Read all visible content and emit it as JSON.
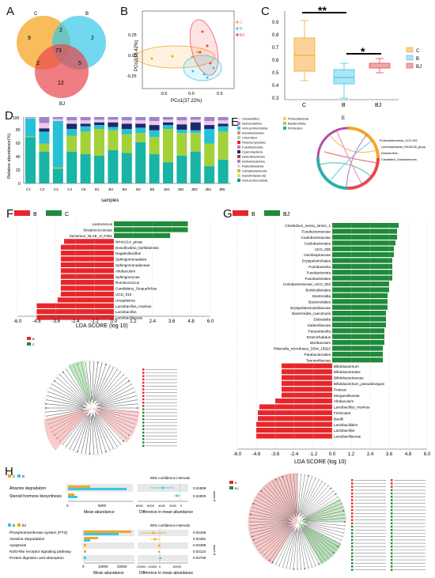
{
  "panels": {
    "a": "A",
    "b": "B",
    "c": "C",
    "d": "D",
    "e": "E",
    "f": "F",
    "g": "G",
    "h": "H"
  },
  "venn": {
    "sets": [
      {
        "label": "C",
        "color": "#f5a623"
      },
      {
        "label": "B",
        "color": "#36c8e8"
      },
      {
        "label": "BJ",
        "color": "#e8464b"
      }
    ],
    "counts": {
      "c_only": "9",
      "b_only": "2",
      "bj_only": "12",
      "c_b": "2",
      "c_bj": "2",
      "b_bj": "5",
      "all": "73"
    }
  },
  "pcoa": {
    "xlabel": "PCo1(37.22%)",
    "ylabel": "PCo2(18.42%)",
    "xticks": [
      "-0.5",
      "0.0",
      "0.5"
    ],
    "yticks": [
      "-0.25",
      "0.00",
      "0.25"
    ],
    "legend": [
      {
        "label": "C",
        "color": "#f5a623"
      },
      {
        "label": "B",
        "color": "#36c8e8"
      },
      {
        "label": "BJ",
        "color": "#e8464b"
      }
    ]
  },
  "boxplot": {
    "yticks": [
      "0.3",
      "0.4",
      "0.5",
      "0.6",
      "0.7",
      "0.8",
      "0.9"
    ],
    "categories": [
      "C",
      "B",
      "BJ"
    ],
    "sig1": "**",
    "sig2": "*",
    "legend": [
      {
        "label": "C",
        "color": "#f5a623"
      },
      {
        "label": "B",
        "color": "#36c8e8"
      },
      {
        "label": "BJ",
        "color": "#e8464b"
      }
    ]
  },
  "bar_d": {
    "ylabel": "Relative abundance(%)",
    "xlabel": "samples",
    "yticks": [
      "0",
      "20",
      "40",
      "60",
      "80",
      "100"
    ],
    "samples": [
      "C1",
      "C2",
      "C3",
      "C4",
      "C5",
      "B1",
      "B2",
      "B3",
      "B4",
      "B5",
      "JB1",
      "JB2",
      "JB3",
      "JB4",
      "JB5"
    ],
    "legend_col1": [
      "Unclassified",
      "Spirochaetota",
      "Verrucomicrobiota",
      "Acidobacteriota",
      "Chloroflexi",
      "Planctomycetota",
      "Fusobacteriota",
      "Cyanobacteria",
      "Deferribacterota",
      "Actinobacteriota",
      "Patescibacteria",
      "Campilobacterota",
      "Desulfobacterota",
      "Verrucomicrobiota"
    ],
    "legend_col2": [
      "Proteobacteria",
      "Bacteroidota",
      "Firmicutes"
    ]
  },
  "chord_e": {
    "label": "E",
    "labels": [
      "Proteobacteraceae_UCG-005",
      "Lachnospiraceae_NK4A136_group",
      "Desulfovibrio",
      "Candidatus_Saccharimonas"
    ]
  },
  "lda_f": {
    "legend": [
      {
        "label": "B",
        "color": "#e8262a"
      },
      {
        "label": "C",
        "color": "#1f8a3a"
      }
    ],
    "xlabel": "LDA SCORE (log 10)",
    "xticks": [
      "-6.0",
      "-4.8",
      "-3.6",
      "-2.4",
      "-1.2",
      "0.0",
      "1.2",
      "2.4",
      "3.6",
      "4.8",
      "6.0"
    ],
    "bars": [
      {
        "name": "Lactococcus",
        "value": 4.6
      },
      {
        "name": "Streptococcaceae",
        "value": 4.6
      },
      {
        "name": "bacterium_NLAE_zl_P281",
        "value": 3.5
      },
      {
        "name": "NK4A214_group",
        "value": -3.1
      },
      {
        "name": "Desulfovibrio_fairfieldensis",
        "value": -3.3
      },
      {
        "name": "Negativibacillus",
        "value": -3.3
      },
      {
        "name": "Sphingomonadales",
        "value": -3.3
      },
      {
        "name": "Sphingomonadaceae",
        "value": -3.3
      },
      {
        "name": "Allobaculum",
        "value": -3.3
      },
      {
        "name": "Sphingomonas",
        "value": -3.3
      },
      {
        "name": "Ruminococcus",
        "value": -3.3
      },
      {
        "name": "Candidatus_Stoquefichus",
        "value": -3.3
      },
      {
        "name": "UCG_010",
        "value": -3.3
      },
      {
        "name": "Ureaplasma",
        "value": -3.5
      },
      {
        "name": "Lactobacillus_murinus",
        "value": -4.8
      },
      {
        "name": "Lactobacillus",
        "value": -4.8
      },
      {
        "name": "Lactobacillaceae",
        "value": -4.8
      }
    ]
  },
  "lda_g": {
    "legend": [
      {
        "label": "B",
        "color": "#e8262a"
      },
      {
        "label": "BJ",
        "color": "#1f8a3a"
      }
    ],
    "xlabel": "LDA SCORE (log 10)",
    "xticks": [
      "-6.0",
      "-4.8",
      "-3.6",
      "-2.4",
      "-1.2",
      "0.0",
      "1.2",
      "2.4",
      "3.6",
      "4.8",
      "6.0"
    ],
    "bars": [
      {
        "name": "Clostridium_sensu_stricto_1",
        "value": 4.2
      },
      {
        "name": "Fusobacteriaceae",
        "value": 4.1
      },
      {
        "name": "Caulobacteraceae",
        "value": 4.1
      },
      {
        "name": "Caulobacterales",
        "value": 4.0
      },
      {
        "name": "UCG_005",
        "value": 3.9
      },
      {
        "name": "Oscillospiraceae",
        "value": 3.9
      },
      {
        "name": "Erysipelotrichales",
        "value": 3.8
      },
      {
        "name": "Fusobacteriia",
        "value": 3.8
      },
      {
        "name": "Fusobacteriota",
        "value": 3.8
      },
      {
        "name": "Fusobacteriales",
        "value": 3.8
      },
      {
        "name": "Coriobacteriaceae_UCG_002",
        "value": 3.6
      },
      {
        "name": "Burkholderiales",
        "value": 3.6
      },
      {
        "name": "Bacteroidia",
        "value": 3.5
      },
      {
        "name": "Bacteroidales",
        "value": 3.5
      },
      {
        "name": "Erysipelatoclostridiaceae",
        "value": 3.5
      },
      {
        "name": "Bacteroides_caecimuris",
        "value": 3.4
      },
      {
        "name": "Dubosiella",
        "value": 3.4
      },
      {
        "name": "Sutterellaceae",
        "value": 3.4
      },
      {
        "name": "Parasutterella",
        "value": 3.3
      },
      {
        "name": "Enterorhabdus",
        "value": 3.3
      },
      {
        "name": "Muribaculum",
        "value": 3.3
      },
      {
        "name": "Rikenella_microfusus_DSM_15922",
        "value": 3.2
      },
      {
        "name": "Parabacteroides",
        "value": 3.2
      },
      {
        "name": "Tannerellaceae",
        "value": 3.2
      },
      {
        "name": "Bifidobacterium",
        "value": -3.2
      },
      {
        "name": "Bifidobacteriales",
        "value": -3.2
      },
      {
        "name": "Bifidobacteriaceae",
        "value": -3.2
      },
      {
        "name": "Bifidobacterium_pseudolongum",
        "value": -3.2
      },
      {
        "name": "Proteus",
        "value": -3.2
      },
      {
        "name": "Morganellaceae",
        "value": -3.2
      },
      {
        "name": "Allobaculum",
        "value": -3.6
      },
      {
        "name": "Lactobacillus_murinus",
        "value": -4.6
      },
      {
        "name": "Firmicutes",
        "value": -4.7
      },
      {
        "name": "Bacilli",
        "value": -4.7
      },
      {
        "name": "Lactobacillales",
        "value": -4.8
      },
      {
        "name": "Lactobacillus",
        "value": -4.8
      },
      {
        "name": "Lactobacillaceae",
        "value": -4.8
      }
    ]
  },
  "clado_f": {
    "legend": [
      {
        "label": "B",
        "color": "#e8262a"
      },
      {
        "label": "C",
        "color": "#1f8a3a"
      }
    ]
  },
  "clado_g": {
    "legend": [
      {
        "label": "B",
        "color": "#e8262a"
      },
      {
        "label": "BJ",
        "color": "#1f8a3a"
      }
    ]
  },
  "stamp1": {
    "legend": [
      {
        "label": "C",
        "color": "#f5a623"
      },
      {
        "label": "B",
        "color": "#36c8e8"
      }
    ],
    "pathways": [
      "Atrazine degradation",
      "Steroid hormone biosynthesis"
    ],
    "ci_title": "95% confidence intervals",
    "pvalues": [
      "0.01808",
      "0.04800"
    ],
    "xlabel_left": "Mean abundance",
    "xlabel_right": "Difference in mean abundance",
    "xticks_left": [
      "0",
      "5000"
    ],
    "xticks_right": [
      "8000",
      "6000",
      "4000",
      "2000",
      "0"
    ],
    "pvalue_axis": "p-value"
  },
  "stamp2": {
    "legend": [
      {
        "label": "B",
        "color": "#36c8e8"
      },
      {
        "label": "BJ",
        "color": "#f5a623"
      }
    ],
    "pathways": [
      "Phosphotransferase system (PTS)",
      "Atrazine degradation",
      "Apoptosis",
      "NOD-like receptor signaling pathway",
      "Protein digestion and absorption"
    ],
    "ci_title": "95% confidence intervals",
    "pvalues": [
      "0.04166",
      "0.04481",
      "0.03498",
      "0.02124",
      "0.04700"
    ],
    "xlabel_left": "Mean abundance",
    "xlabel_right": "Difference in mean abundance",
    "xticks_left": [
      "0",
      "10000",
      "20000"
    ],
    "xticks_right": [
      "-20000",
      "-10000",
      "0",
      "10000"
    ],
    "pvalue_axis": "p-value"
  }
}
